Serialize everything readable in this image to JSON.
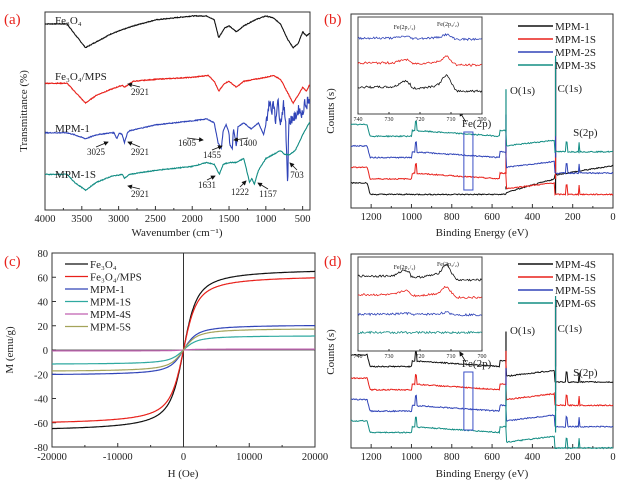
{
  "figure": {
    "panels": [
      "(a)",
      "(b)",
      "(c)",
      "(d)"
    ]
  },
  "chart_data": [
    {
      "id": "a",
      "type": "line",
      "panel_label": "(a)",
      "title": "",
      "xlabel": "Wavenumber (cm⁻¹)",
      "ylabel": "Transmittance (%)",
      "xlim": [
        4000,
        400
      ],
      "x_reversed": true,
      "xticks": [
        4000,
        3500,
        3000,
        2500,
        2000,
        1500,
        1000,
        500
      ],
      "yticks_shown": false,
      "legend": "inline",
      "series": [
        {
          "name": "Fe3O4",
          "label": "Fe₃O₄",
          "color": "#111111",
          "offset": 0.88,
          "points": [
            [
              4000,
              0.06
            ],
            [
              3700,
              0.06
            ],
            [
              3600,
              0.01
            ],
            [
              3450,
              -0.06
            ],
            [
              3300,
              -0.03
            ],
            [
              3100,
              0.01
            ],
            [
              2950,
              0.03
            ],
            [
              2800,
              0.05
            ],
            [
              2500,
              0.08
            ],
            [
              2000,
              0.1
            ],
            [
              1800,
              0.1
            ],
            [
              1700,
              0.08
            ],
            [
              1640,
              -0.01
            ],
            [
              1560,
              0.04
            ],
            [
              1500,
              0.05
            ],
            [
              1400,
              0.02
            ],
            [
              1300,
              0.05
            ],
            [
              1150,
              0.08
            ],
            [
              1000,
              0.1
            ],
            [
              900,
              0.09
            ],
            [
              800,
              0.06
            ],
            [
              700,
              -0.02
            ],
            [
              630,
              -0.06
            ],
            [
              560,
              -0.04
            ],
            [
              500,
              0.02
            ],
            [
              450,
              0.0
            ],
            [
              410,
              0.01
            ]
          ]
        },
        {
          "name": "Fe3O4/MPS",
          "label": "Fe₃O₄/MPS",
          "color": "#e8201a",
          "offset": 0.64,
          "points": [
            [
              4000,
              0.0
            ],
            [
              3700,
              0.0
            ],
            [
              3600,
              -0.04
            ],
            [
              3450,
              -0.1
            ],
            [
              3300,
              -0.06
            ],
            [
              3100,
              -0.03
            ],
            [
              2950,
              -0.01
            ],
            [
              2921,
              -0.02
            ],
            [
              2800,
              0.01
            ],
            [
              2500,
              0.02
            ],
            [
              2000,
              0.03
            ],
            [
              1780,
              0.04
            ],
            [
              1700,
              0.01
            ],
            [
              1640,
              -0.04
            ],
            [
              1560,
              0.0
            ],
            [
              1500,
              0.01
            ],
            [
              1400,
              -0.02
            ],
            [
              1300,
              0.01
            ],
            [
              1150,
              0.02
            ],
            [
              1000,
              0.03
            ],
            [
              900,
              0.04
            ],
            [
              800,
              0.02
            ],
            [
              700,
              -0.05
            ],
            [
              630,
              -0.1
            ],
            [
              560,
              -0.06
            ],
            [
              500,
              -0.02
            ],
            [
              450,
              -0.04
            ],
            [
              410,
              -0.01
            ]
          ]
        },
        {
          "name": "MPM-1",
          "label": "MPM-1",
          "color": "#3044b8",
          "offset": 0.39,
          "points": [
            [
              4000,
              0.0
            ],
            [
              3700,
              0.0
            ],
            [
              3600,
              -0.01
            ],
            [
              3450,
              -0.03
            ],
            [
              3300,
              -0.01
            ],
            [
              3100,
              0.0
            ],
            [
              3060,
              0.0
            ],
            [
              3025,
              -0.03
            ],
            [
              2990,
              0.0
            ],
            [
              2950,
              -0.01
            ],
            [
              2921,
              -0.05
            ],
            [
              2880,
              0.0
            ],
            [
              2850,
              0.01
            ],
            [
              2500,
              0.04
            ],
            [
              2000,
              0.06
            ],
            [
              1800,
              0.07
            ],
            [
              1700,
              0.05
            ],
            [
              1650,
              -0.05
            ],
            [
              1605,
              -0.08
            ],
            [
              1580,
              0.01
            ],
            [
              1540,
              0.04
            ],
            [
              1500,
              0.0
            ],
            [
              1490,
              -0.06
            ],
            [
              1455,
              -0.08
            ],
            [
              1440,
              0.02
            ],
            [
              1420,
              -0.02
            ],
            [
              1400,
              -0.07
            ],
            [
              1380,
              0.03
            ],
            [
              1300,
              0.05
            ],
            [
              1200,
              0.02
            ],
            [
              1100,
              0.05
            ],
            [
              1030,
              -0.01
            ],
            [
              1000,
              0.04
            ],
            [
              950,
              0.16
            ],
            [
              920,
              0.1
            ],
            [
              900,
              0.18
            ],
            [
              870,
              0.05
            ],
            [
              840,
              0.17
            ],
            [
              800,
              0.05
            ],
            [
              760,
              0.14
            ],
            [
              730,
              0.06
            ],
            [
              703,
              -0.28
            ],
            [
              690,
              0.05
            ],
            [
              650,
              0.07
            ],
            [
              600,
              0.08
            ],
            [
              550,
              0.12
            ],
            [
              500,
              0.09
            ],
            [
              470,
              0.17
            ],
            [
              450,
              0.11
            ],
            [
              430,
              0.19
            ],
            [
              410,
              0.14
            ]
          ]
        },
        {
          "name": "MPM-1S",
          "label": "MPM-1S",
          "color": "#138d84",
          "offset": 0.18,
          "points": [
            [
              4000,
              0.0
            ],
            [
              3700,
              0.0
            ],
            [
              3600,
              -0.04
            ],
            [
              3450,
              -0.08
            ],
            [
              3300,
              -0.04
            ],
            [
              3100,
              -0.01
            ],
            [
              2950,
              0.0
            ],
            [
              2921,
              -0.02
            ],
            [
              2850,
              0.0
            ],
            [
              2500,
              0.02
            ],
            [
              2000,
              0.04
            ],
            [
              1800,
              0.06
            ],
            [
              1700,
              0.05
            ],
            [
              1631,
              0.0
            ],
            [
              1580,
              0.05
            ],
            [
              1500,
              0.06
            ],
            [
              1400,
              0.06
            ],
            [
              1300,
              0.08
            ],
            [
              1260,
              0.02
            ],
            [
              1222,
              -0.04
            ],
            [
              1190,
              -0.02
            ],
            [
              1157,
              -0.05
            ],
            [
              1100,
              0.02
            ],
            [
              1000,
              0.08
            ],
            [
              900,
              0.1
            ],
            [
              800,
              0.12
            ],
            [
              740,
              0.1
            ],
            [
              680,
              0.1
            ],
            [
              600,
              0.12
            ],
            [
              500,
              0.2
            ],
            [
              410,
              0.26
            ]
          ]
        }
      ],
      "annotations": [
        {
          "text": "2921",
          "series": "Fe3O4/MPS",
          "x": 2921
        },
        {
          "text": "3025",
          "series": "MPM-1",
          "x": 3025
        },
        {
          "text": "2921",
          "series": "MPM-1",
          "x": 2921
        },
        {
          "text": "1605",
          "series": "MPM-1",
          "x": 1605
        },
        {
          "text": "1455",
          "series": "MPM-1",
          "x": 1455
        },
        {
          "text": "1400",
          "series": "MPM-1",
          "x": 1400
        },
        {
          "text": "703",
          "series": "MPM-1",
          "x": 703
        },
        {
          "text": "2921",
          "series": "MPM-1S",
          "x": 2921
        },
        {
          "text": "1631",
          "series": "MPM-1S",
          "x": 1631
        },
        {
          "text": "1222",
          "series": "MPM-1S",
          "x": 1222
        },
        {
          "text": "1157",
          "series": "MPM-1S",
          "x": 1157
        }
      ]
    },
    {
      "id": "b",
      "type": "line",
      "panel_label": "(b)",
      "title": "",
      "xlabel": "Binding Energy (eV)",
      "ylabel": "Counts (s)",
      "xlim": [
        1300,
        0
      ],
      "x_reversed": true,
      "xticks": [
        1200,
        1000,
        800,
        600,
        400,
        200,
        0
      ],
      "yticks_shown": false,
      "legend": "top-right",
      "series": [
        {
          "name": "MPM-1",
          "color": "#111111",
          "offset": 0.07,
          "kind": "xps_plain"
        },
        {
          "name": "MPM-1S",
          "color": "#e8201a",
          "offset": 0.15,
          "kind": "xps_S"
        },
        {
          "name": "MPM-2S",
          "color": "#3044b8",
          "offset": 0.26,
          "kind": "xps_S"
        },
        {
          "name": "MPM-3S",
          "color": "#138d84",
          "offset": 0.37,
          "kind": "xps_S"
        }
      ],
      "peak_labels": [
        {
          "text": "O(1s)",
          "x": 531
        },
        {
          "text": "C(1s)",
          "x": 285
        },
        {
          "text": "S(2p)",
          "x": 168
        },
        {
          "text": "Fe(2p)",
          "x": 710
        }
      ],
      "highlight_box_x": [
        740,
        695
      ],
      "inset": {
        "xlim": [
          740,
          700
        ],
        "xticks": [
          740,
          730,
          720,
          710,
          700
        ],
        "series_order": [
          "MPM-2S",
          "MPM-1S",
          "MPM-1"
        ],
        "peak_labels": [
          "Fe(2p₁/₂)",
          "Fe(2p₃/₂)"
        ],
        "peak_positions": [
          725,
          711
        ],
        "peak_strength": {
          "MPM-1": 1.0,
          "MPM-1S": 0.55,
          "MPM-2S": 0.3
        }
      }
    },
    {
      "id": "c",
      "type": "line",
      "panel_label": "(c)",
      "title": "",
      "xlabel": "H (Oe)",
      "ylabel": "M (emu/g)",
      "xlim": [
        -20000,
        20000
      ],
      "ylim": [
        -80,
        80
      ],
      "xticks": [
        -20000,
        -10000,
        0,
        10000,
        20000
      ],
      "yticks": [
        -80,
        -60,
        -40,
        -20,
        0,
        20,
        40,
        60,
        80
      ],
      "legend": "top-left",
      "series": [
        {
          "name": "Fe3O4",
          "label": "Fe₃O₄",
          "color": "#111111",
          "Ms": 67.5
        },
        {
          "name": "Fe3O4/MPS",
          "label": "Fe₃O₄/MPS",
          "color": "#e8201a",
          "Ms": 62.0
        },
        {
          "name": "MPM-1",
          "label": "MPM-1",
          "color": "#3044b8",
          "Ms": 21.0
        },
        {
          "name": "MPM-1S",
          "label": "MPM-1S",
          "color": "#2fa9a0",
          "Ms": 12.0
        },
        {
          "name": "MPM-4S",
          "label": "MPM-4S",
          "color": "#c060b0",
          "Ms": 0.8
        },
        {
          "name": "MPM-5S",
          "label": "MPM-5S",
          "color": "#a4a35a",
          "Ms": 18.0
        }
      ]
    },
    {
      "id": "d",
      "type": "line",
      "panel_label": "(d)",
      "title": "",
      "xlabel": "Binding Energy (eV)",
      "ylabel": "Counts (s)",
      "xlim": [
        1300,
        0
      ],
      "x_reversed": true,
      "xticks": [
        1200,
        1000,
        800,
        600,
        400,
        200,
        0
      ],
      "yticks_shown": false,
      "legend": "top-right",
      "series": [
        {
          "name": "MPM-4S",
          "color": "#111111",
          "offset": 0.42,
          "kind": "xps_S"
        },
        {
          "name": "MPM-1S",
          "color": "#e8201a",
          "offset": 0.3,
          "kind": "xps_S"
        },
        {
          "name": "MPM-5S",
          "color": "#3044b8",
          "offset": 0.19,
          "kind": "xps_S"
        },
        {
          "name": "MPM-6S",
          "color": "#138d84",
          "offset": 0.08,
          "kind": "xps_S"
        }
      ],
      "peak_labels": [
        {
          "text": "O(1s)",
          "x": 531
        },
        {
          "text": "C(1s)",
          "x": 285
        },
        {
          "text": "S(2p)",
          "x": 168
        },
        {
          "text": "Fe(2p)",
          "x": 710
        }
      ],
      "highlight_box_x": [
        740,
        695
      ],
      "inset": {
        "xlim": [
          740,
          700
        ],
        "xticks": [
          740,
          730,
          720,
          710,
          700
        ],
        "series_order": [
          "MPM-4S",
          "MPM-1S",
          "MPM-5S",
          "MPM-6S"
        ],
        "peak_labels": [
          "Fe(2p₁/₂)",
          "Fe(2p₃/₂)"
        ],
        "peak_positions": [
          725,
          711
        ],
        "peak_strength": {
          "MPM-4S": 1.0,
          "MPM-1S": 0.7,
          "MPM-5S": 0.15,
          "MPM-6S": 0.0
        }
      }
    }
  ]
}
